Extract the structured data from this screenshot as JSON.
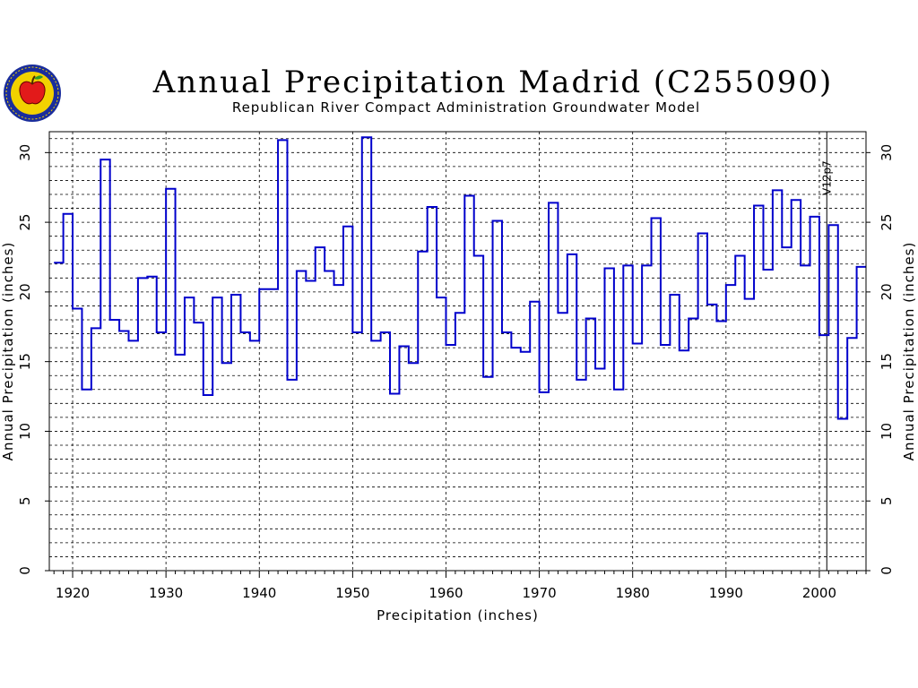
{
  "header": {
    "title": "Annual Precipitation Madrid (C255090)",
    "subtitle": "Republican River Compact Administration Groundwater Model"
  },
  "logo": {
    "icon": "rrca-apple-seal-icon",
    "ring_color": "#1a2d9c",
    "fill_color": "#f2d200",
    "apple_color": "#e21a1a"
  },
  "colors": {
    "series": "#0000cc",
    "grid": "#000000"
  },
  "chart_data": {
    "type": "line",
    "step": true,
    "title": "Annual Precipitation Madrid (C255090)",
    "subtitle": "Republican River Compact Administration Groundwater Model",
    "xlabel": "Precipitation (inches)",
    "ylabel": "Annual Precipitation (inches)",
    "xlim": [
      1917.5,
      2005.0
    ],
    "ylim": [
      0,
      31.5
    ],
    "xticks": [
      1920,
      1930,
      1940,
      1950,
      1960,
      1970,
      1980,
      1990,
      2000
    ],
    "yticks": [
      0,
      5,
      10,
      15,
      20,
      25,
      30
    ],
    "y_minor_grid_step": 1,
    "grid": true,
    "annotation": {
      "text": "V12p7",
      "x": 2000.8
    },
    "x": [
      1918,
      1919,
      1920,
      1921,
      1922,
      1923,
      1924,
      1925,
      1926,
      1927,
      1928,
      1929,
      1930,
      1931,
      1932,
      1933,
      1934,
      1935,
      1936,
      1937,
      1938,
      1939,
      1940,
      1941,
      1942,
      1943,
      1944,
      1945,
      1946,
      1947,
      1948,
      1949,
      1950,
      1951,
      1952,
      1953,
      1954,
      1955,
      1956,
      1957,
      1958,
      1959,
      1960,
      1961,
      1962,
      1963,
      1964,
      1965,
      1966,
      1967,
      1968,
      1969,
      1970,
      1971,
      1972,
      1973,
      1974,
      1975,
      1976,
      1977,
      1978,
      1979,
      1980,
      1981,
      1982,
      1983,
      1984,
      1985,
      1986,
      1987,
      1988,
      1989,
      1990,
      1991,
      1992,
      1993,
      1994,
      1995,
      1996,
      1997,
      1998,
      1999,
      2000,
      2001,
      2002,
      2003,
      2004
    ],
    "y": [
      22.1,
      25.6,
      18.8,
      13.0,
      17.4,
      29.5,
      18.0,
      17.2,
      16.5,
      21.0,
      21.1,
      17.1,
      27.4,
      15.5,
      19.6,
      17.8,
      12.6,
      19.6,
      14.9,
      19.8,
      17.1,
      16.5,
      20.2,
      20.2,
      30.9,
      13.7,
      21.5,
      20.8,
      23.2,
      21.5,
      20.5,
      24.7,
      17.1,
      31.1,
      16.5,
      17.1,
      12.7,
      16.1,
      14.9,
      22.9,
      26.1,
      19.6,
      16.2,
      18.5,
      26.9,
      22.6,
      13.9,
      25.1,
      17.1,
      16.0,
      15.7,
      19.3,
      12.8,
      26.4,
      18.5,
      22.7,
      13.7,
      18.1,
      14.5,
      21.7,
      13.0,
      21.9,
      16.3,
      21.9,
      25.3,
      16.2,
      19.8,
      15.8,
      18.1,
      24.2,
      19.1,
      17.9,
      20.5,
      22.6,
      19.5,
      26.2,
      21.6,
      27.3,
      23.2,
      26.6,
      21.9,
      25.4,
      16.9,
      24.8,
      10.9,
      16.7,
      21.8
    ]
  }
}
